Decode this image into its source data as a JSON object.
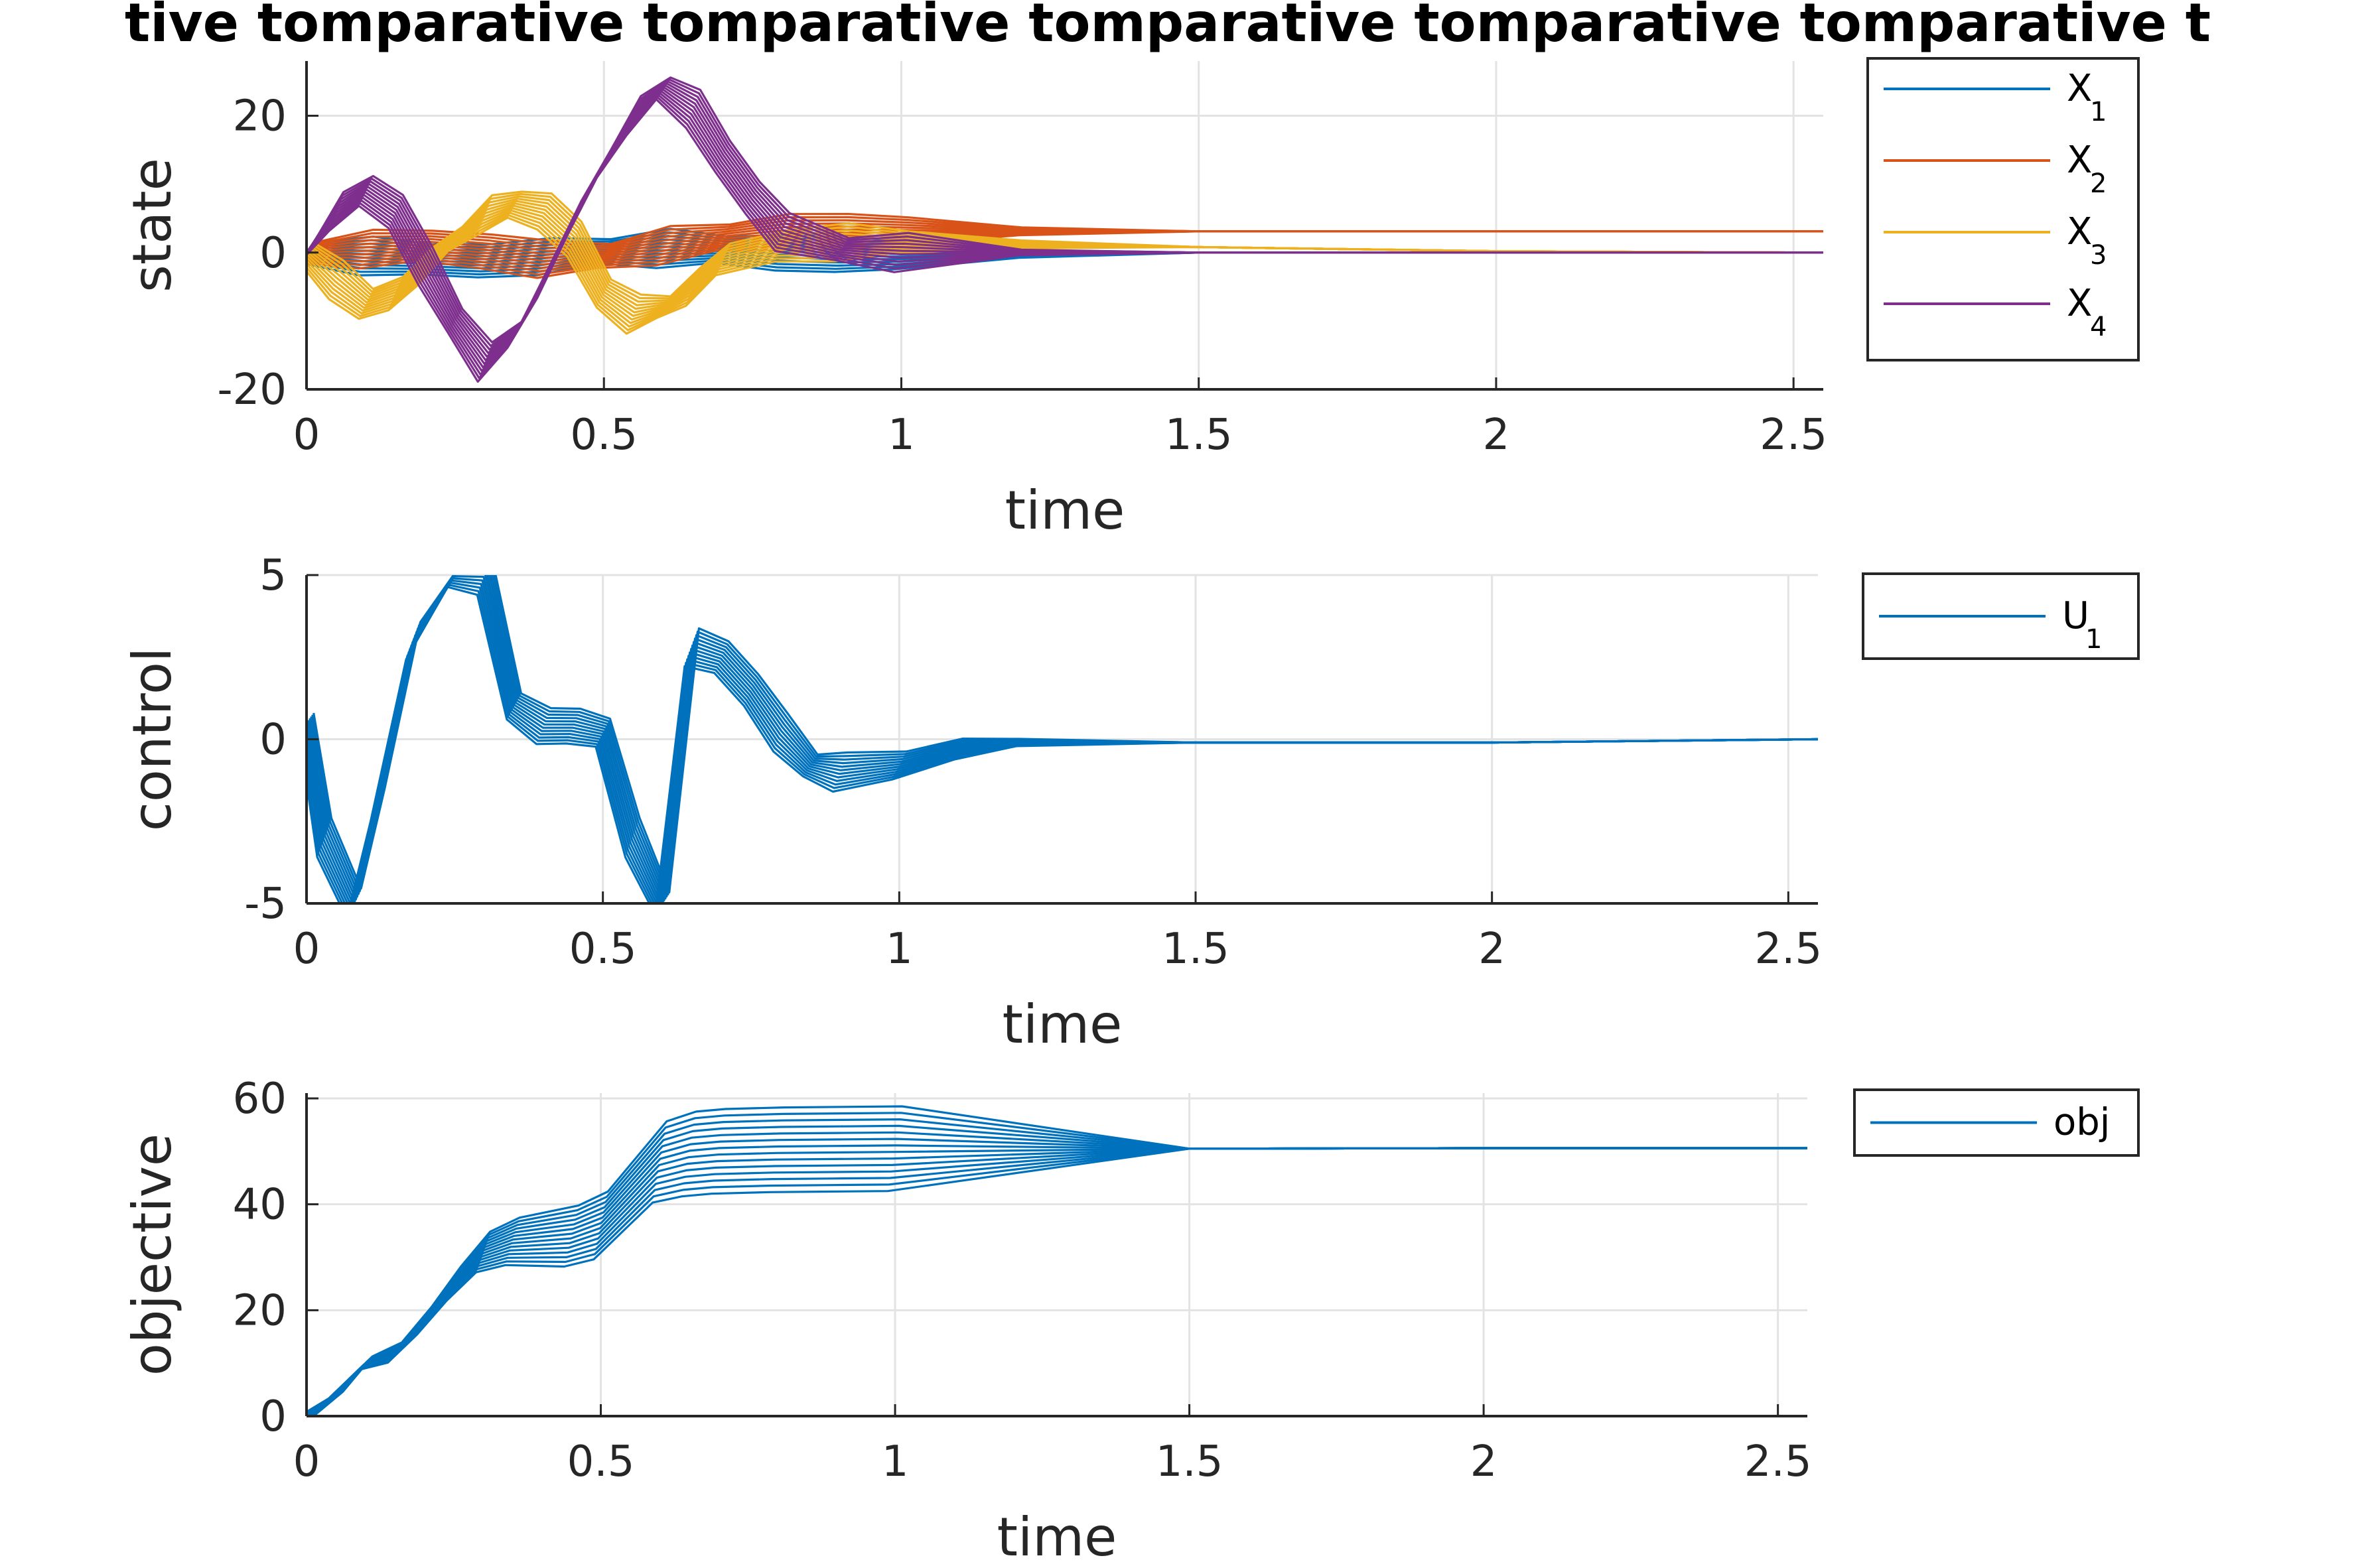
{
  "figure": {
    "title": "tive tomparative tomparative tomparative tomparative tomparative t"
  },
  "chart_data": [
    {
      "type": "line",
      "id": "state",
      "xlabel": "time",
      "ylabel": "state",
      "xlim": [
        0,
        2.55
      ],
      "ylim": [
        -20,
        28
      ],
      "xticks": [
        0,
        0.5,
        1,
        1.5,
        2,
        2.5
      ],
      "xtick_labels": [
        "0",
        "0.5",
        "1",
        "1.5",
        "2",
        "2.5"
      ],
      "yticks": [
        -20,
        0,
        20
      ],
      "ytick_labels": [
        "-20",
        "0",
        "20"
      ],
      "grid": true,
      "legend_position": "outside-right",
      "series": [
        {
          "name": "X",
          "sub": "1",
          "color": "#0072BD",
          "x": [
            0,
            0.1,
            0.2,
            0.3,
            0.4,
            0.5,
            0.6,
            0.7,
            0.8,
            0.9,
            1.0,
            1.2,
            1.5,
            2.0,
            2.55
          ],
          "y": [
            0,
            -0.5,
            -1.0,
            -1.2,
            -0.6,
            0.2,
            0.6,
            0.4,
            0.0,
            -0.3,
            -0.4,
            -0.2,
            0,
            0,
            0
          ]
        },
        {
          "name": "X",
          "sub": "2",
          "color": "#D95319",
          "x": [
            0,
            0.1,
            0.2,
            0.3,
            0.4,
            0.5,
            0.6,
            0.7,
            0.8,
            0.9,
            1.0,
            1.2,
            1.5,
            2.0,
            2.55
          ],
          "y": [
            0,
            0.5,
            1.0,
            0.2,
            -1.0,
            -0.5,
            1.0,
            2.2,
            3.0,
            3.1,
            3.1,
            3.1,
            3.1,
            3.1,
            3.1
          ]
        },
        {
          "name": "X",
          "sub": "3",
          "color": "#EDB120",
          "x": [
            0,
            0.05,
            0.1,
            0.15,
            0.2,
            0.25,
            0.3,
            0.35,
            0.4,
            0.45,
            0.5,
            0.55,
            0.6,
            0.65,
            0.7,
            0.8,
            0.9,
            1.0,
            1.2,
            1.5,
            2.0,
            2.55
          ],
          "y": [
            0,
            -4,
            -7.5,
            -6,
            -2,
            2,
            5.5,
            7,
            6,
            2,
            -6,
            -9,
            -8,
            -5,
            -1,
            1,
            1.5,
            1.5,
            1.2,
            0.8,
            0.2,
            0
          ]
        },
        {
          "name": "X",
          "sub": "4",
          "color": "#7E2F8E",
          "x": [
            0,
            0.05,
            0.1,
            0.15,
            0.2,
            0.25,
            0.3,
            0.35,
            0.4,
            0.45,
            0.5,
            0.55,
            0.6,
            0.65,
            0.7,
            0.75,
            0.8,
            0.9,
            1.0,
            1.2,
            1.5,
            2.0,
            2.55
          ],
          "y": [
            0,
            6,
            9,
            6,
            -2,
            -10,
            -16,
            -12,
            -4,
            5,
            13,
            20,
            24,
            21,
            14,
            8,
            3,
            0.5,
            0,
            0,
            0,
            0,
            0
          ]
        }
      ]
    },
    {
      "type": "line",
      "id": "control",
      "xlabel": "time",
      "ylabel": "control",
      "xlim": [
        0,
        2.55
      ],
      "ylim": [
        -5,
        5
      ],
      "xticks": [
        0,
        0.5,
        1,
        1.5,
        2,
        2.5
      ],
      "xtick_labels": [
        "0",
        "0.5",
        "1",
        "1.5",
        "2",
        "2.5"
      ],
      "yticks": [
        -5,
        0,
        5
      ],
      "ytick_labels": [
        "-5",
        "0",
        "5"
      ],
      "grid": true,
      "legend_position": "outside-right",
      "series": [
        {
          "name": "U",
          "sub": "1",
          "color": "#0072BD",
          "x": [
            0,
            0.03,
            0.08,
            0.12,
            0.18,
            0.25,
            0.3,
            0.35,
            0.4,
            0.45,
            0.5,
            0.55,
            0.6,
            0.65,
            0.7,
            0.75,
            0.8,
            0.85,
            0.9,
            1.0,
            1.1,
            1.2,
            1.5,
            2.0,
            2.55
          ],
          "y": [
            0.5,
            -3,
            -5,
            -2,
            3,
            5,
            5,
            1,
            0.4,
            0.4,
            0.2,
            -3,
            -5,
            2.8,
            2.5,
            1.5,
            0.2,
            -0.8,
            -1.0,
            -0.8,
            -0.3,
            -0.1,
            -0.1,
            -0.1,
            0
          ]
        }
      ]
    },
    {
      "type": "line",
      "id": "objective",
      "xlabel": "time",
      "ylabel": "objective",
      "xlim": [
        0,
        2.55
      ],
      "ylim": [
        0,
        61
      ],
      "xticks": [
        0,
        0.5,
        1,
        1.5,
        2,
        2.5
      ],
      "xtick_labels": [
        "0",
        "0.5",
        "1",
        "1.5",
        "2",
        "2.5"
      ],
      "yticks": [
        0,
        20,
        40,
        60
      ],
      "ytick_labels": [
        "0",
        "20",
        "40",
        "60"
      ],
      "grid": true,
      "legend_position": "outside-right",
      "series": [
        {
          "name": "obj",
          "sub": "",
          "color": "#0072BD",
          "x": [
            0,
            0.05,
            0.1,
            0.15,
            0.2,
            0.25,
            0.3,
            0.35,
            0.4,
            0.45,
            0.5,
            0.55,
            0.6,
            0.65,
            0.7,
            0.8,
            0.9,
            1.0,
            1.5,
            2.0,
            2.55
          ],
          "y": [
            0,
            4,
            10,
            12,
            18,
            25,
            31,
            33,
            33.5,
            34,
            36,
            42,
            48,
            49.5,
            50,
            50.3,
            50.4,
            50.5,
            50.5,
            50.6,
            50.6
          ]
        }
      ]
    }
  ]
}
